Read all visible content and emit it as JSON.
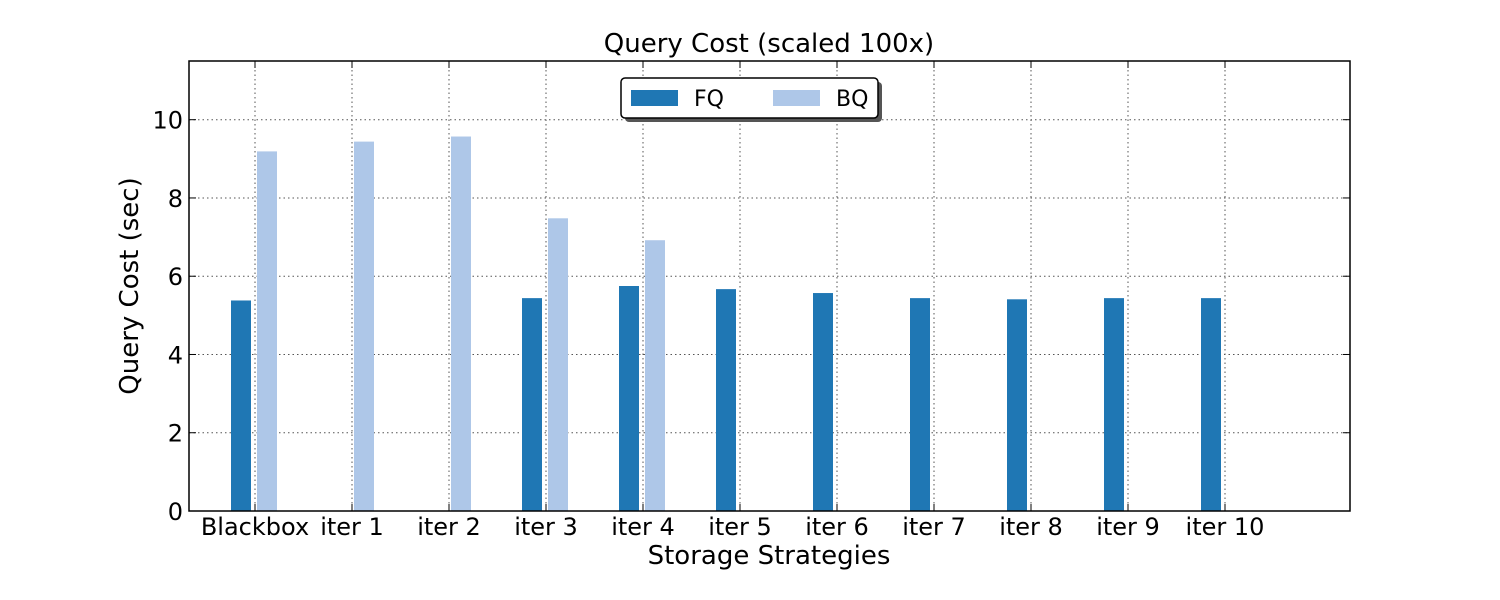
{
  "chart_data": {
    "type": "bar",
    "title": "Query Cost (scaled 100x)",
    "xlabel": "Storage Strategies",
    "ylabel": "Query Cost (sec)",
    "categories": [
      "Blackbox",
      "iter 1",
      "iter 2",
      "iter 3",
      "iter 4",
      "iter 5",
      "iter 6",
      "iter 7",
      "iter 8",
      "iter 9",
      "iter 10"
    ],
    "series": [
      {
        "name": "FQ",
        "color": "#1f77b4",
        "values": [
          5.38,
          null,
          null,
          5.44,
          5.75,
          5.67,
          5.57,
          5.44,
          5.41,
          5.44,
          5.44
        ]
      },
      {
        "name": "BQ",
        "color": "#aec7e8",
        "values": [
          9.19,
          9.44,
          9.57,
          7.48,
          6.92,
          null,
          null,
          null,
          null,
          null,
          null
        ]
      }
    ],
    "ylim": [
      0,
      11.5
    ],
    "yticks": [
      "0",
      "2",
      "4",
      "6",
      "8",
      "10"
    ],
    "grid": true,
    "legend_position": "top-center"
  }
}
